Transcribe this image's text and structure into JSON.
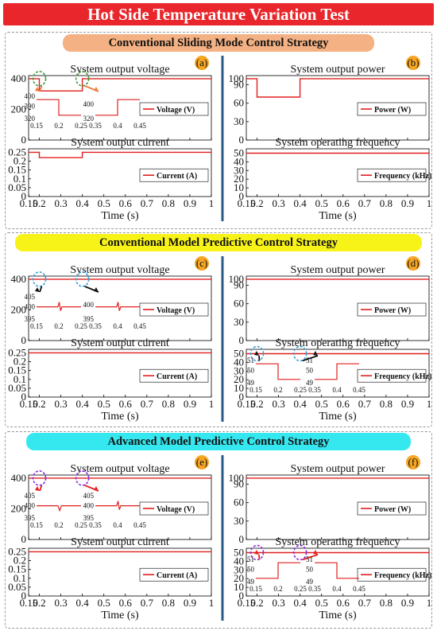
{
  "figure_title": "Hot Side Temperature Variation Test",
  "colors": {
    "trace": "#e0201f",
    "divider": "#2a5c8a",
    "title_bg": "#e8262b"
  },
  "sections": [
    {
      "banner": "Conventional Sliding Mode Control Strategy",
      "banner_color": "#f4b183",
      "zoom_color": "#f07a3a",
      "zoom_circle_color": "#3a9a3a",
      "left_label": "(a)",
      "right_label": "(b)",
      "voltage": {
        "title": "System output voltage",
        "legend": "Voltage (V)",
        "yticks": [
          "400",
          "200",
          "0"
        ],
        "dips": [
          {
            "x": [
              0.2,
              0.4
            ],
            "y": 320
          }
        ],
        "inset1": {
          "ylabels": [
            "400",
            "390",
            "320"
          ],
          "xticks": [
            "0.15",
            "0.2",
            "0.25"
          ],
          "shape": "step-down"
        },
        "inset2": {
          "ylabels": [
            "400",
            "320"
          ],
          "xticks": [
            "0.35",
            "0.4",
            "0.45"
          ],
          "shape": "step-up"
        }
      },
      "current": {
        "title": "System output current",
        "legend": "Current (A)",
        "yticks": [
          "0.25",
          "0.2",
          "0.15",
          "0.1",
          "0.05",
          "0"
        ],
        "nominal": 0.25,
        "dip": 0.22
      },
      "power": {
        "title": "System output power",
        "legend": "Power (W)",
        "yticks": [
          "100",
          "90",
          "60",
          "30",
          "0"
        ],
        "nominal": 100,
        "dip": 70
      },
      "frequency": {
        "title": "System operating frequency",
        "legend": "Frequency (kHz)",
        "yticks": [
          "50",
          "40",
          "30",
          "20",
          "10",
          "0"
        ],
        "nominal": 50,
        "inset1": null,
        "inset2": null
      }
    },
    {
      "banner": "Conventional Model Predictive Control Strategy",
      "banner_color": "#f7f318",
      "zoom_color": "#111111",
      "zoom_circle_color": "#3aa0d8",
      "left_label": "(c)",
      "right_label": "(d)",
      "voltage": {
        "title": "System output voltage",
        "legend": "Voltage (V)",
        "yticks": [
          "400",
          "200",
          "0"
        ],
        "inset1": {
          "ylabels": [
            "405",
            "400",
            "395"
          ],
          "xticks": [
            "0.15",
            "0.2",
            "0.25"
          ],
          "shape": "blip"
        },
        "inset2": {
          "ylabels": [
            "400",
            "395"
          ],
          "xticks": [
            "0.35",
            "0.4",
            "0.45"
          ],
          "shape": "blip"
        }
      },
      "current": {
        "title": "System output current",
        "legend": "Current (A)",
        "yticks": [
          "0.25",
          "0.2",
          "0.15",
          "0.1",
          "0.05",
          "0"
        ],
        "nominal": 0.25
      },
      "power": {
        "title": "System output power",
        "legend": "Power (W)",
        "yticks": [
          "100",
          "90",
          "60",
          "30",
          "0"
        ],
        "nominal": 100
      },
      "frequency": {
        "title": "System operating frequency",
        "legend": "Frequency (kHz)",
        "yticks": [
          "50",
          "40",
          "30",
          "20",
          "10",
          "0"
        ],
        "nominal": 50,
        "inset1": {
          "ylabels": [
            "51",
            "50",
            "49"
          ],
          "xticks": [
            "0.15",
            "0.2",
            "0.25"
          ],
          "shape": "step-down"
        },
        "inset2": {
          "ylabels": [
            "51",
            "50",
            "49"
          ],
          "xticks": [
            "0.35",
            "0.4",
            "0.45"
          ],
          "shape": "step-up"
        }
      }
    },
    {
      "banner": "Advanced Model Predictive Control Strategy",
      "banner_color": "#35e8f0",
      "zoom_color": "#e82020",
      "zoom_circle_color": "#8a2be2",
      "left_label": "(e)",
      "right_label": "(f)",
      "voltage": {
        "title": "System output voltage",
        "legend": "Voltage (V)",
        "yticks": [
          "400",
          "200",
          "0"
        ],
        "inset1": {
          "ylabels": [
            "405",
            "400",
            "395"
          ],
          "xticks": [
            "0.15",
            "0.2",
            "0.25"
          ],
          "shape": "blip-down"
        },
        "inset2": {
          "ylabels": [
            "405",
            "400",
            "395"
          ],
          "xticks": [
            "0.35",
            "0.4",
            "0.45"
          ],
          "shape": "blip"
        }
      },
      "current": {
        "title": "System output current",
        "legend": "Current (A)",
        "yticks": [
          "0.25",
          "0.2",
          "0.15",
          "0.1",
          "0.05",
          "0"
        ],
        "nominal": 0.25
      },
      "power": {
        "title": "System output power",
        "legend": "Power (W)",
        "yticks": [
          "100",
          "90",
          "60",
          "30",
          "0"
        ],
        "nominal": 100
      },
      "frequency": {
        "title": "System operating frequency",
        "legend": "Frequency (kHz)",
        "yticks": [
          "50",
          "40",
          "30",
          "20",
          "10",
          "0"
        ],
        "nominal": 50,
        "inset1": {
          "ylabels": [
            "51",
            "50",
            "49"
          ],
          "xticks": [
            "0.15",
            "0.2",
            "0.25"
          ],
          "shape": "step-up"
        },
        "inset2": {
          "ylabels": [
            "51",
            "50",
            "49"
          ],
          "xticks": [
            "0.35",
            "0.4",
            "0.45"
          ],
          "shape": "step-down"
        }
      }
    }
  ],
  "xaxis": {
    "label": "Time (s)",
    "ticks": [
      "0.15",
      "0.2",
      "0.3",
      "0.4",
      "0.5",
      "0.6",
      "0.7",
      "0.8",
      "0.9",
      "1"
    ]
  },
  "chart_data": [
    {
      "type": "line",
      "title": "System output voltage",
      "panel": "(a)",
      "x": [
        0.15,
        0.2,
        0.2,
        0.4,
        0.4,
        1
      ],
      "series": [
        {
          "name": "Voltage (V)",
          "values": [
            400,
            400,
            320,
            320,
            400,
            400
          ]
        }
      ],
      "ylim": [
        0,
        420
      ]
    },
    {
      "type": "line",
      "title": "System output current",
      "panel": "(a)",
      "x": [
        0.15,
        0.2,
        0.2,
        0.4,
        0.4,
        1
      ],
      "series": [
        {
          "name": "Current (A)",
          "values": [
            0.25,
            0.25,
            0.22,
            0.22,
            0.25,
            0.25
          ]
        }
      ],
      "ylim": [
        0,
        0.27
      ]
    },
    {
      "type": "line",
      "title": "System output power",
      "panel": "(b)",
      "x": [
        0.15,
        0.2,
        0.2,
        0.4,
        0.4,
        1
      ],
      "series": [
        {
          "name": "Power (W)",
          "values": [
            100,
            100,
            70,
            70,
            100,
            100
          ]
        }
      ],
      "ylim": [
        0,
        105
      ]
    },
    {
      "type": "line",
      "title": "System operating frequency",
      "panel": "(b)",
      "x": [
        0.15,
        1
      ],
      "series": [
        {
          "name": "Frequency (kHz)",
          "values": [
            50,
            50
          ]
        }
      ],
      "ylim": [
        0,
        55
      ]
    },
    {
      "type": "line",
      "title": "System output voltage",
      "panel": "(c)",
      "x": [
        0.15,
        1
      ],
      "series": [
        {
          "name": "Voltage (V)",
          "values": [
            400,
            400
          ]
        }
      ],
      "ylim": [
        0,
        420
      ]
    },
    {
      "type": "line",
      "title": "System output current",
      "panel": "(c)",
      "x": [
        0.15,
        1
      ],
      "series": [
        {
          "name": "Current (A)",
          "values": [
            0.25,
            0.25
          ]
        }
      ],
      "ylim": [
        0,
        0.27
      ]
    },
    {
      "type": "line",
      "title": "System output power",
      "panel": "(d)",
      "x": [
        0.15,
        1
      ],
      "series": [
        {
          "name": "Power (W)",
          "values": [
            100,
            100
          ]
        }
      ],
      "ylim": [
        0,
        105
      ]
    },
    {
      "type": "line",
      "title": "System operating frequency",
      "panel": "(d)",
      "x": [
        0.15,
        1
      ],
      "series": [
        {
          "name": "Frequency (kHz)",
          "values": [
            50,
            50
          ]
        }
      ],
      "ylim": [
        0,
        55
      ]
    },
    {
      "type": "line",
      "title": "System output voltage",
      "panel": "(e)",
      "x": [
        0.15,
        1
      ],
      "series": [
        {
          "name": "Voltage (V)",
          "values": [
            400,
            400
          ]
        }
      ],
      "ylim": [
        0,
        420
      ]
    },
    {
      "type": "line",
      "title": "System output current",
      "panel": "(e)",
      "x": [
        0.15,
        1
      ],
      "series": [
        {
          "name": "Current (A)",
          "values": [
            0.25,
            0.25
          ]
        }
      ],
      "ylim": [
        0,
        0.27
      ]
    },
    {
      "type": "line",
      "title": "System output power",
      "panel": "(f)",
      "x": [
        0.15,
        1
      ],
      "series": [
        {
          "name": "Power (W)",
          "values": [
            100,
            100
          ]
        }
      ],
      "ylim": [
        0,
        105
      ]
    },
    {
      "type": "line",
      "title": "System operating frequency",
      "panel": "(f)",
      "x": [
        0.15,
        1
      ],
      "series": [
        {
          "name": "Frequency (kHz)",
          "values": [
            50,
            50
          ]
        }
      ],
      "ylim": [
        0,
        55
      ]
    }
  ]
}
